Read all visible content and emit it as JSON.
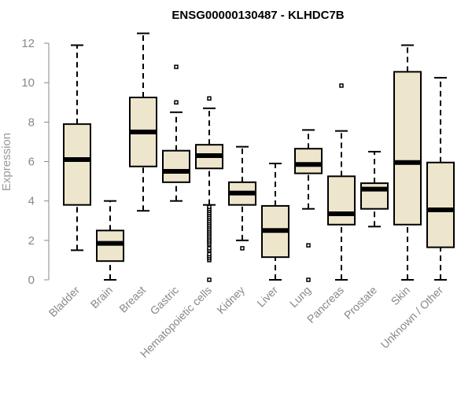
{
  "chart_data": {
    "type": "boxplot",
    "title": "ENSG00000130487 - KLHDC7B",
    "xlabel": "",
    "ylabel": "Expression",
    "ylim": [
      0,
      12
    ],
    "yticks": [
      0,
      2,
      4,
      6,
      8,
      10,
      12
    ],
    "grid": false,
    "colors": {
      "box_fill": "#ede6cc",
      "stroke": "#000000",
      "axis": "#888888"
    },
    "categories": [
      "Bladder",
      "Brain",
      "Breast",
      "Gastric",
      "Hematopoietic cells",
      "Kidney",
      "Liver",
      "Lung",
      "Pancreas",
      "Prostate",
      "Skin",
      "Unknown / Other"
    ],
    "boxes": [
      {
        "min": 1.5,
        "q1": 3.8,
        "median": 6.1,
        "q3": 7.9,
        "max": 11.9,
        "outliers": []
      },
      {
        "min": 0.0,
        "q1": 0.95,
        "median": 1.85,
        "q3": 2.5,
        "max": 4.0,
        "outliers": []
      },
      {
        "min": 3.5,
        "q1": 5.75,
        "median": 7.5,
        "q3": 9.25,
        "max": 12.5,
        "outliers": []
      },
      {
        "min": 4.0,
        "q1": 4.95,
        "median": 5.5,
        "q3": 6.55,
        "max": 8.5,
        "outliers": [
          9.0,
          10.8
        ]
      },
      {
        "min": 3.8,
        "q1": 5.65,
        "median": 6.3,
        "q3": 6.85,
        "max": 8.7,
        "outliers": [
          0.0,
          1.0,
          1.1,
          1.2,
          1.3,
          1.5,
          1.6,
          1.8,
          1.9,
          2.0,
          2.1,
          2.2,
          2.3,
          2.4,
          2.5,
          2.6,
          2.7,
          2.8,
          2.9,
          3.0,
          3.1,
          3.2,
          3.3,
          3.4,
          3.5,
          3.6,
          3.7,
          9.2
        ]
      },
      {
        "min": 2.0,
        "q1": 3.8,
        "median": 4.4,
        "q3": 4.95,
        "max": 6.75,
        "outliers": [
          1.6
        ]
      },
      {
        "min": 0.0,
        "q1": 1.15,
        "median": 2.5,
        "q3": 3.75,
        "max": 5.9,
        "outliers": []
      },
      {
        "min": 3.6,
        "q1": 5.4,
        "median": 5.85,
        "q3": 6.65,
        "max": 7.6,
        "outliers": [
          0.0,
          1.75
        ]
      },
      {
        "min": 0.0,
        "q1": 2.8,
        "median": 3.35,
        "q3": 5.25,
        "max": 7.55,
        "outliers": [
          9.85
        ]
      },
      {
        "min": 2.7,
        "q1": 3.6,
        "median": 4.6,
        "q3": 4.9,
        "max": 6.5,
        "outliers": []
      },
      {
        "min": 0.0,
        "q1": 2.8,
        "median": 5.95,
        "q3": 10.55,
        "max": 11.9,
        "outliers": []
      },
      {
        "min": 0.0,
        "q1": 1.65,
        "median": 3.55,
        "q3": 5.95,
        "max": 10.25,
        "outliers": []
      }
    ]
  }
}
